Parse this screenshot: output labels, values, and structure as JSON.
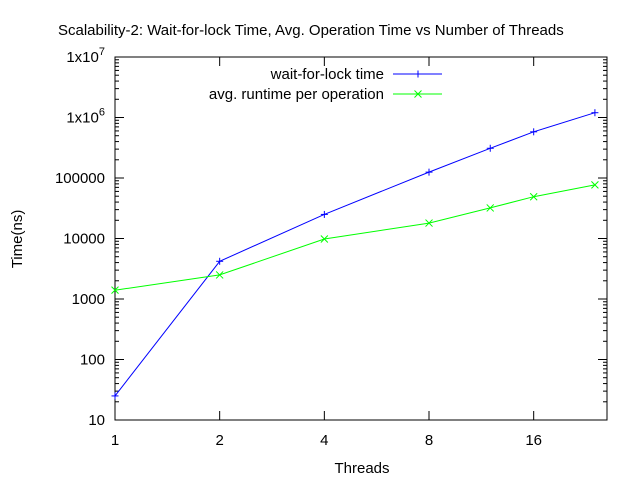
{
  "chart_data": {
    "type": "line",
    "title": "Scalability-2: Wait-for-lock Time, Avg. Operation Time vs Number of Threads",
    "xlabel": "Threads",
    "ylabel": "Time(ns)",
    "x_scale": "log2",
    "y_scale": "log10",
    "xlim": [
      1,
      26
    ],
    "ylim": [
      10,
      10000000
    ],
    "x_ticks": [
      {
        "value": 1,
        "label": "1"
      },
      {
        "value": 2,
        "label": "2"
      },
      {
        "value": 4,
        "label": "4"
      },
      {
        "value": 8,
        "label": "8"
      },
      {
        "value": 16,
        "label": "16"
      }
    ],
    "y_ticks": [
      {
        "value": 10,
        "label": "10"
      },
      {
        "value": 100,
        "label": "100"
      },
      {
        "value": 1000,
        "label": "1000"
      },
      {
        "value": 10000,
        "label": "10000"
      },
      {
        "value": 100000,
        "label": "100000"
      },
      {
        "value": 1000000,
        "base": "1x10",
        "exp": "6"
      },
      {
        "value": 10000000,
        "base": "1x10",
        "exp": "7"
      }
    ],
    "legend_position": "top-right",
    "grid": false,
    "series": [
      {
        "name": "wait-for-lock time",
        "color": "#0000ff",
        "marker": "plus",
        "x": [
          1,
          2,
          4,
          8,
          12,
          16,
          24
        ],
        "y": [
          25,
          4200,
          25000,
          125000,
          310000,
          580000,
          1200000
        ]
      },
      {
        "name": "avg. runtime per operation",
        "color": "#00ff00",
        "marker": "cross",
        "x": [
          1,
          2,
          4,
          8,
          12,
          16,
          24
        ],
        "y": [
          1400,
          2500,
          9800,
          18000,
          32000,
          49000,
          77000
        ]
      }
    ]
  }
}
